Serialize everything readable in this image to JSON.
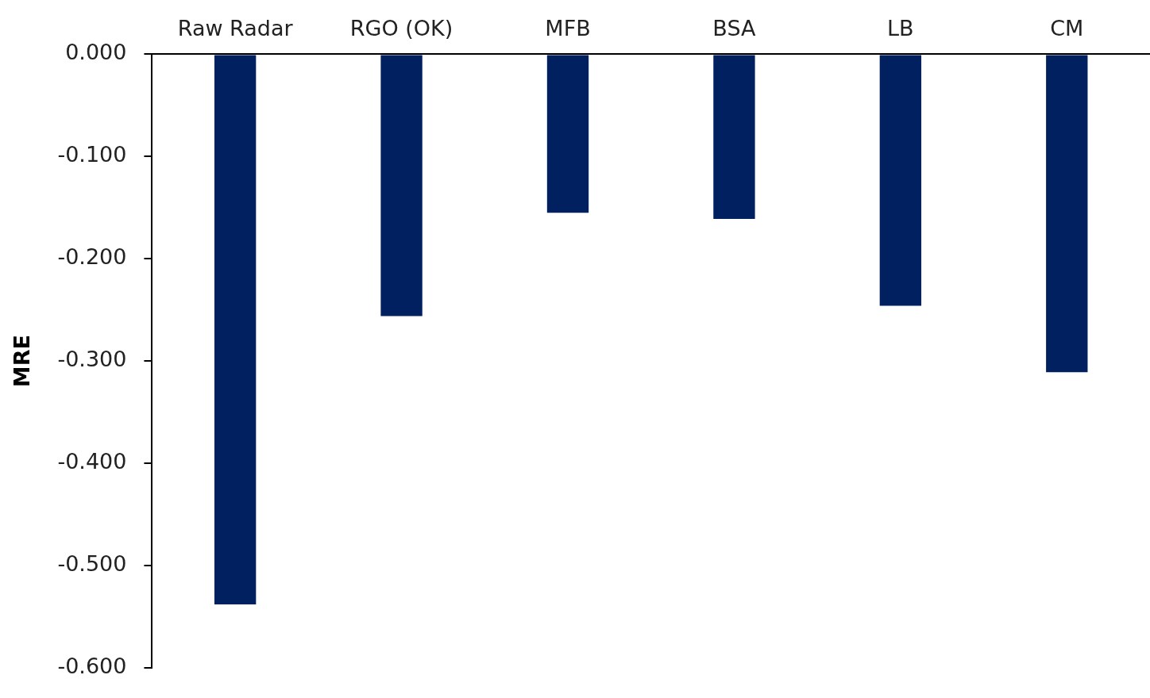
{
  "chart_data": {
    "type": "bar",
    "ylabel": "MRE",
    "categories": [
      "Raw Radar",
      "RGO (OK)",
      "MFB",
      "BSA",
      "LB",
      "CM"
    ],
    "values": [
      -0.538,
      -0.256,
      -0.155,
      -0.161,
      -0.246,
      -0.311
    ],
    "color": "#002060",
    "ylim": [
      -0.6,
      0
    ],
    "yticks": [
      {
        "value": 0,
        "label": "0.000"
      },
      {
        "value": -0.1,
        "label": "-0.100"
      },
      {
        "value": -0.2,
        "label": "-0.200"
      },
      {
        "value": -0.3,
        "label": "-0.300"
      },
      {
        "value": -0.4,
        "label": "-0.400"
      },
      {
        "value": -0.5,
        "label": "-0.500"
      },
      {
        "value": -0.6,
        "label": "-0.600"
      }
    ],
    "grid": false,
    "legend": false
  }
}
